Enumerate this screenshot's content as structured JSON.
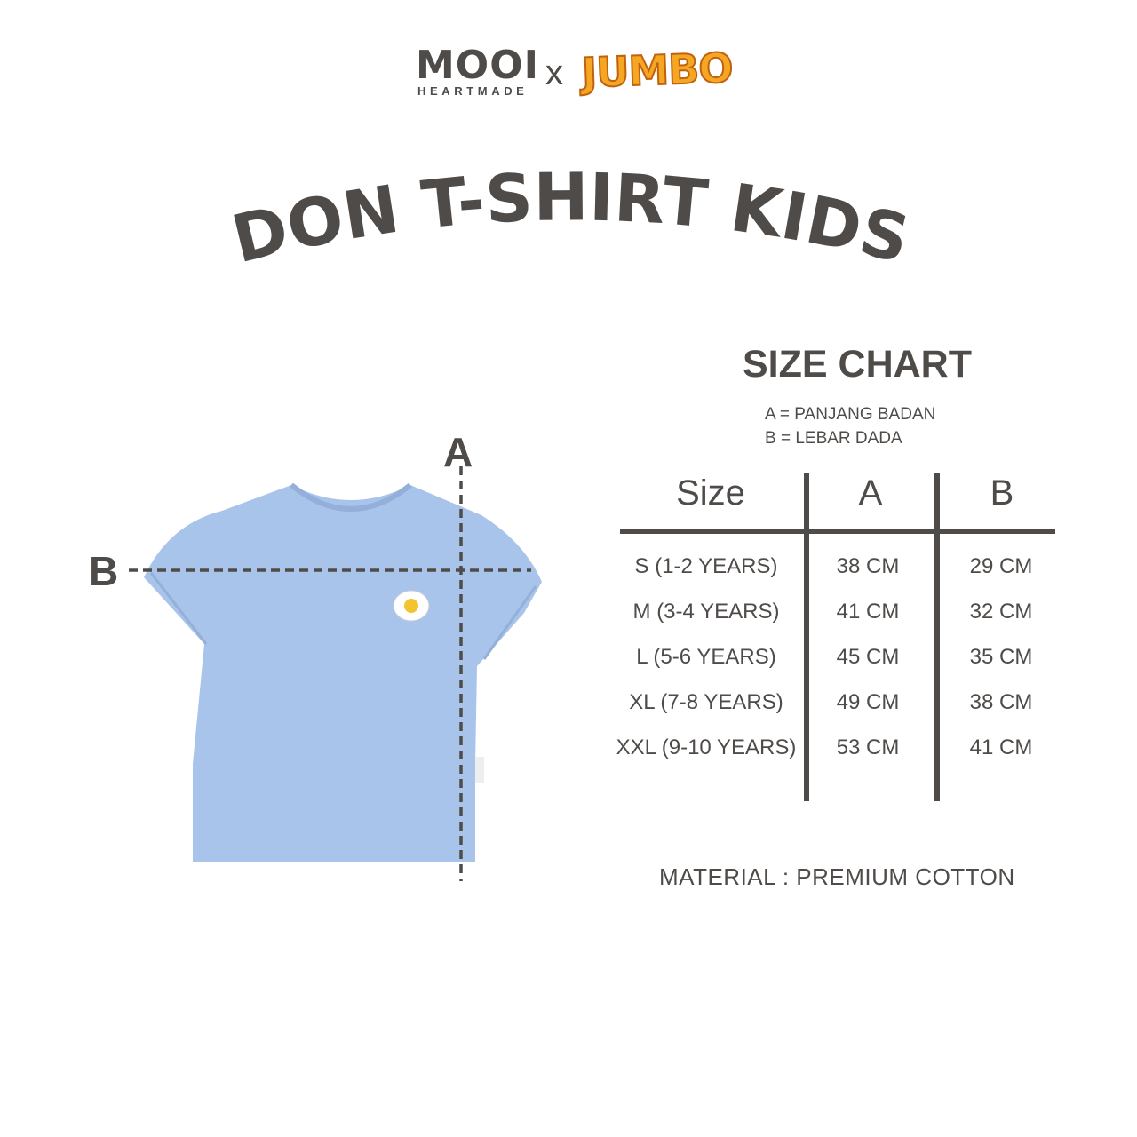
{
  "brand": {
    "mooi": "MOOI",
    "heartmade": "HEARTMADE",
    "separator": "x",
    "partner": "JUMBO"
  },
  "title": "DON T-SHIRT KIDS",
  "size_chart": {
    "heading": "SIZE CHART",
    "legend": [
      "A = PANJANG BADAN",
      "B = LEBAR DADA"
    ],
    "columns": [
      "Size",
      "A",
      "B"
    ],
    "rows": [
      [
        "S (1-2 YEARS)",
        "38 CM",
        "29 CM"
      ],
      [
        "M (3-4 YEARS)",
        "41 CM",
        "32 CM"
      ],
      [
        "L (5-6 YEARS)",
        "45 CM",
        "35 CM"
      ],
      [
        "XL (7-8 YEARS)",
        "49 CM",
        "38 CM"
      ],
      [
        "XXL (9-10 YEARS)",
        "53 CM",
        "41 CM"
      ]
    ]
  },
  "diagram": {
    "label_a": "A",
    "label_b": "B",
    "shirt_color": "#a9c4ea"
  },
  "material": "MATERIAL : PREMIUM COTTON",
  "colors": {
    "text": "#4f4b48",
    "jumbo": "#f5a623"
  }
}
